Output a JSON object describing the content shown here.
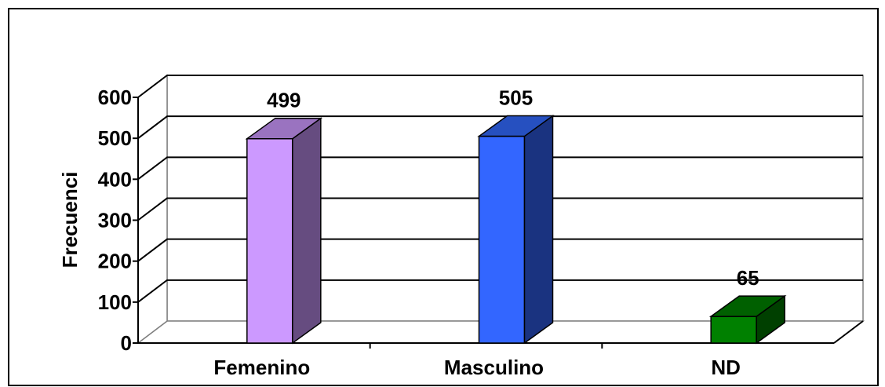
{
  "chart_data": {
    "type": "bar",
    "three_d": true,
    "categories": [
      "Femenino",
      "Masculino",
      "ND"
    ],
    "values": [
      499,
      505,
      65
    ],
    "data_labels": [
      "499",
      "505",
      "65"
    ],
    "ylabel": "Frecuenci",
    "ylim": [
      0,
      600
    ],
    "y_ticks": [
      0,
      100,
      200,
      300,
      400,
      500,
      600
    ],
    "y_tick_labels": [
      "0",
      "100",
      "200",
      "300",
      "400",
      "500",
      "600"
    ],
    "grid": true,
    "legend": "none",
    "colors": {
      "bars": [
        {
          "front": "#cc99ff",
          "side": "#664c80",
          "top": "#9a73c0"
        },
        {
          "front": "#3366ff",
          "side": "#1a3380",
          "top": "#2650c0"
        },
        {
          "front": "#008000",
          "side": "#004000",
          "top": "#006000"
        }
      ]
    }
  }
}
